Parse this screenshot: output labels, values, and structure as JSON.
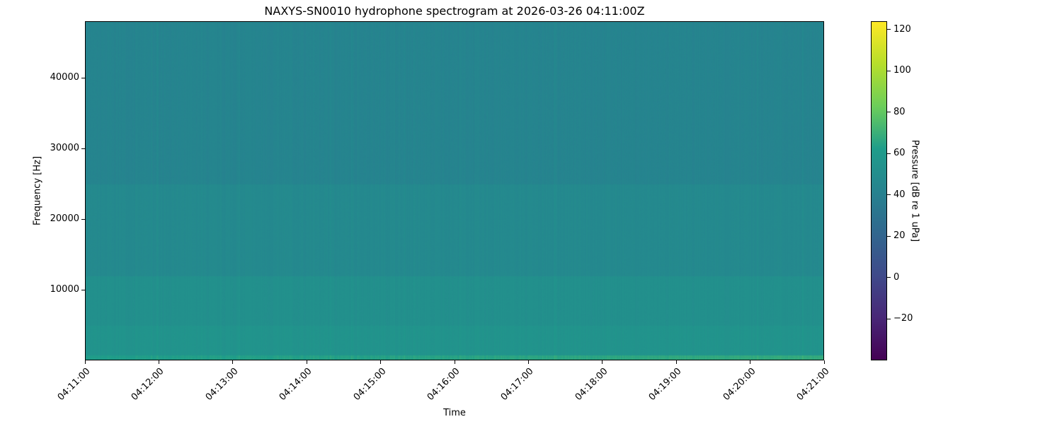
{
  "chart_data": {
    "type": "heatmap",
    "title": "NAXYS-SN0010 hydrophone spectrogram at 2026-03-26 04:11:00Z",
    "xlabel": "Time",
    "ylabel": "Frequency [Hz]",
    "colorbar_label": "Pressure [dB re 1 uPa]",
    "colormap": "viridis",
    "xlim": [
      "04:11:00",
      "04:21:00"
    ],
    "ylim": [
      0,
      48000
    ],
    "clim": [
      -40,
      124
    ],
    "x_ticks": [
      "04:11:00",
      "04:12:00",
      "04:13:00",
      "04:14:00",
      "04:15:00",
      "04:16:00",
      "04:17:00",
      "04:18:00",
      "04:19:00",
      "04:20:00",
      "04:21:00"
    ],
    "y_ticks": [
      10000,
      20000,
      30000,
      40000
    ],
    "y_tick_labels": [
      "10000",
      "20000",
      "30000",
      "40000"
    ],
    "colorbar_ticks": [
      -20,
      0,
      20,
      40,
      60,
      80,
      100,
      120
    ],
    "colorbar_tick_labels": [
      "−20",
      "0",
      "20",
      "40",
      "60",
      "80",
      "100",
      "120"
    ],
    "frequency_bands": [
      {
        "f_low": 0,
        "f_high": 800,
        "level_db_start": 62,
        "level_db_end": 68
      },
      {
        "f_low": 800,
        "f_high": 5000,
        "level_db_start": 55,
        "level_db_end": 55
      },
      {
        "f_low": 5000,
        "f_high": 12000,
        "level_db_start": 52,
        "level_db_end": 52
      },
      {
        "f_low": 12000,
        "f_high": 25000,
        "level_db_start": 47,
        "level_db_end": 47
      },
      {
        "f_low": 25000,
        "f_high": 48000,
        "level_db_start": 43,
        "level_db_end": 43
      }
    ],
    "grid": false
  }
}
